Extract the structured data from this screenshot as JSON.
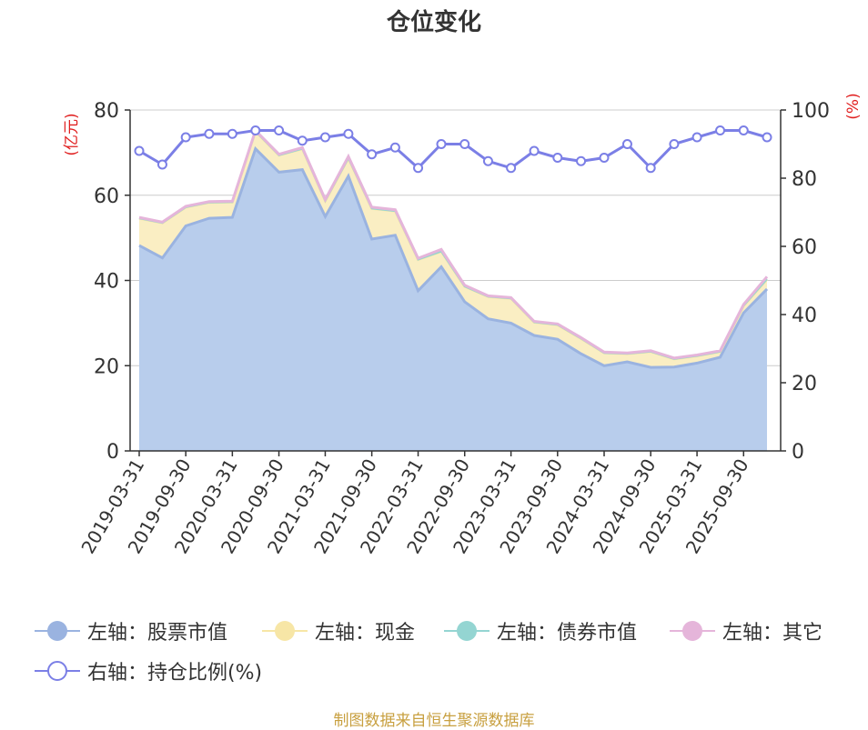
{
  "title": "仓位变化",
  "footer": "制图数据来自恒生聚源数据库",
  "left_axis_unit": "(亿元)",
  "right_axis_unit": "(%)",
  "colors": {
    "stock": "#9ab3e0",
    "stock_fill": "#b8cdec",
    "cash": "#f7e6a6",
    "cash_fill": "#faeec3",
    "bond": "#94d5d2",
    "other": "#e5b5da",
    "ratio": "#7b7fe6",
    "axis_unit": "#e02020"
  },
  "legend": [
    {
      "label": "左轴：股票市值",
      "color": "#9ab3e0",
      "marker": "filled-circle"
    },
    {
      "label": "左轴：现金",
      "color": "#f7e6a6",
      "marker": "filled-circle"
    },
    {
      "label": "左轴：债券市值",
      "color": "#94d5d2",
      "marker": "filled-circle"
    },
    {
      "label": "左轴：其它",
      "color": "#e5b5da",
      "marker": "filled-circle"
    },
    {
      "label": "右轴：持仓比例(%)",
      "color": "#7b7fe6",
      "marker": "hollow-circle"
    }
  ],
  "chart_data": {
    "type": "area",
    "x_tick_labels": [
      "2019-03-31",
      "2019-09-30",
      "2020-03-31",
      "2020-09-30",
      "2021-03-31",
      "2021-09-30",
      "2022-03-31",
      "2022-09-30",
      "2023-03-31",
      "2023-09-30",
      "2024-03-31",
      "2024-09-30",
      "2025-03-31",
      "2025-09-30"
    ],
    "x": [
      "2019-03-31",
      "2019-06-30",
      "2019-09-30",
      "2019-12-31",
      "2020-03-31",
      "2020-06-30",
      "2020-09-30",
      "2020-12-31",
      "2021-03-31",
      "2021-06-30",
      "2021-09-30",
      "2021-12-31",
      "2022-03-31",
      "2022-06-30",
      "2022-09-30",
      "2022-12-31",
      "2023-03-31",
      "2023-06-30",
      "2023-09-30",
      "2023-12-31",
      "2024-03-31",
      "2024-06-30",
      "2024-09-30",
      "2024-12-31",
      "2025-03-31",
      "2025-06-30",
      "2025-09-30",
      "2025-12-31"
    ],
    "left_ylim": [
      0,
      80
    ],
    "left_yticks": [
      0,
      20,
      40,
      60,
      80
    ],
    "right_ylim": [
      0,
      100
    ],
    "right_yticks": [
      0,
      20,
      40,
      60,
      80,
      100
    ],
    "grid": true,
    "legend_position": "bottom",
    "series": [
      {
        "name": "左轴：股票市值",
        "axis": "left",
        "values": [
          48.2,
          45.3,
          52.8,
          54.6,
          54.8,
          70.9,
          65.4,
          66.0,
          55.0,
          64.5,
          49.7,
          50.6,
          37.6,
          43.2,
          35.0,
          31.0,
          30.0,
          27.1,
          26.2,
          22.8,
          20.0,
          20.9,
          19.6,
          19.7,
          20.6,
          22.0,
          32.4,
          38.0
        ]
      },
      {
        "name": "左轴：现金",
        "axis": "left",
        "values": [
          6.4,
          8.2,
          4.4,
          3.7,
          3.6,
          4.1,
          4.0,
          4.9,
          3.7,
          4.2,
          7.2,
          5.7,
          7.3,
          3.6,
          3.6,
          5.2,
          5.8,
          3.1,
          3.4,
          3.6,
          3.0,
          1.9,
          3.7,
          1.9,
          1.7,
          1.3,
          1.7,
          2.3
        ]
      },
      {
        "name": "左轴：债券市值",
        "axis": "left",
        "values": [
          0,
          0,
          0,
          0,
          0,
          0,
          0,
          0,
          0,
          0,
          0,
          0,
          0,
          0,
          0,
          0,
          0,
          0,
          0,
          0,
          0,
          0,
          0,
          0,
          0,
          0,
          0,
          0
        ]
      },
      {
        "name": "左轴：其它",
        "axis": "left",
        "values": [
          0.2,
          0.2,
          0.2,
          0.2,
          0.2,
          0.2,
          0.2,
          0.3,
          0.3,
          0.4,
          0.3,
          0.3,
          0.3,
          0.5,
          0.3,
          0.2,
          0.2,
          0.2,
          0.2,
          0.2,
          0.2,
          0.2,
          0.2,
          0.2,
          0.2,
          0.2,
          0.3,
          0.6
        ]
      },
      {
        "name": "右轴：持仓比例(%)",
        "axis": "right",
        "values": [
          88,
          84,
          92,
          93,
          93,
          94,
          94,
          91,
          92,
          93,
          87,
          89,
          83,
          90,
          90,
          85,
          83,
          88,
          86,
          85,
          86,
          90,
          83,
          90,
          92,
          94,
          94,
          92
        ]
      }
    ]
  }
}
